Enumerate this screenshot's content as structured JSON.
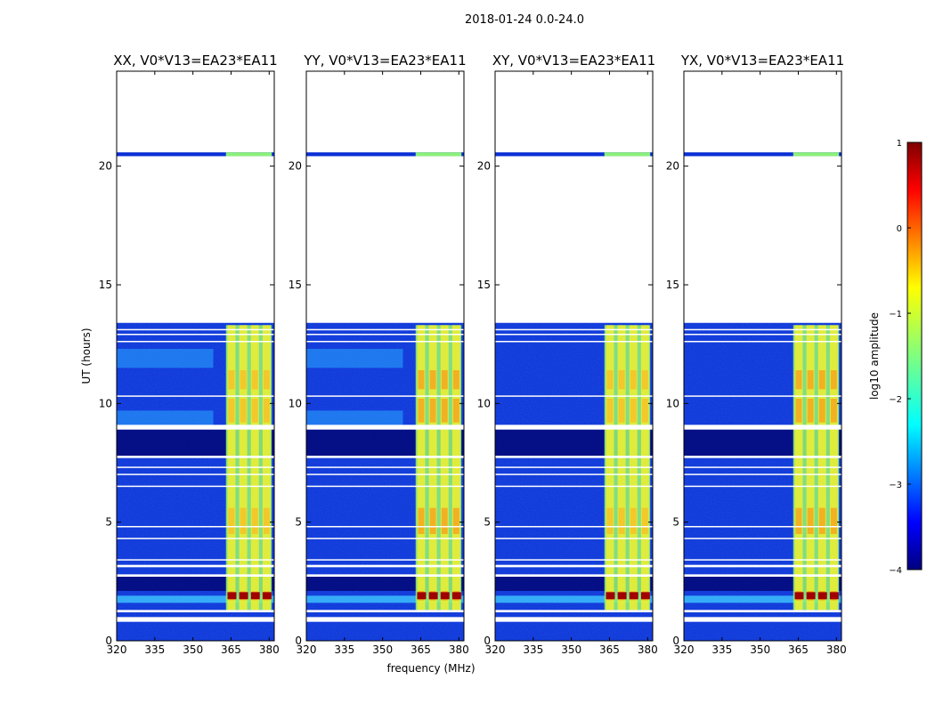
{
  "figure": {
    "suptitle": "2018-01-24 0.0-24.0"
  },
  "chart_data": {
    "type": "heatmap",
    "xlabel": "frequency (MHz)",
    "ylabel": "UT (hours)",
    "xlim": [
      320,
      382
    ],
    "ylim": [
      0,
      24
    ],
    "xticks": [
      320,
      335,
      350,
      365,
      380
    ],
    "yticks": [
      0,
      5,
      10,
      15,
      20
    ],
    "panels": [
      {
        "title": "XX, V0*V13=EA23*EA11",
        "pol": "XX"
      },
      {
        "title": "YY, V0*V13=EA23*EA11",
        "pol": "YY"
      },
      {
        "title": "XY, V0*V13=EA23*EA11",
        "pol": "XY"
      },
      {
        "title": "YX, V0*V13=EA23*EA11",
        "pol": "YX"
      }
    ],
    "data_gaps_hours": [
      [
        0.8,
        1.0
      ],
      [
        1.2,
        1.3
      ],
      [
        2.7,
        2.8
      ],
      [
        3.1,
        3.2
      ],
      [
        7.7,
        7.8
      ],
      [
        8.9,
        9.1
      ],
      [
        13.4,
        20.4
      ],
      [
        20.6,
        24.0
      ]
    ],
    "rfi_band_mhz": [
      363,
      381
    ],
    "colorbar": {
      "label": "log$_{10}$ amplitude",
      "label_text": "log10 amplitude",
      "min": -4,
      "max": 1,
      "ticks": [
        1,
        0,
        -1,
        -2,
        -3,
        -4
      ],
      "colormap": "jet"
    }
  }
}
